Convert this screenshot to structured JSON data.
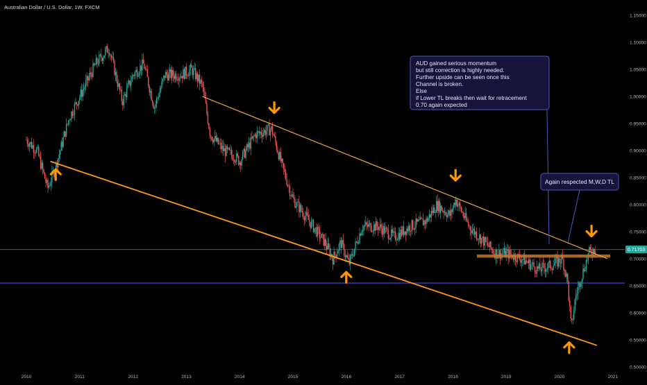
{
  "header": {
    "title": "Australian Dollar / U.S. Dollar, 1W, FXCM"
  },
  "price_badge": "0.71703",
  "annotations": {
    "main_lines": [
      "AUD gained serious momentum",
      "but still correction is highly needed.",
      "Further upside can be seen once this",
      "Channel is broken.",
      "Else",
      "if Lower TL breaks then wait for retracement",
      "0.70 again expected"
    ],
    "second": "Again respected M,W,D TL"
  },
  "colors": {
    "background": "#000000",
    "up_candle": "#26a69a",
    "down_candle": "#ef5350",
    "trendline_upper": "#f5a742",
    "trendline_lower": "#ff9a1f",
    "arrow": "#ff9800",
    "support_zone": "#c8762a",
    "horizontal_line": "#3b3ba8",
    "current_price_line": "#26a69a",
    "callout_fill": "#16143a",
    "callout_border": "#4a5bb8"
  },
  "chart_data": {
    "type": "candlestick",
    "title": "Australian Dollar / U.S. Dollar, 1W, FXCM",
    "x_ticks": [
      "2010",
      "2011",
      "2012",
      "2013",
      "2014",
      "2015",
      "2016",
      "2017",
      "2018",
      "2019",
      "2020",
      "2021"
    ],
    "y_ticks": [
      "1.15000",
      "1.10000",
      "1.05000",
      "1.00000",
      "0.95000",
      "0.90000",
      "0.85000",
      "0.80000",
      "0.75000",
      "0.70000",
      "0.65000",
      "0.60000",
      "0.55000",
      "0.50000"
    ],
    "ylim": [
      0.5,
      1.15
    ],
    "xlim": [
      2010.0,
      2021.2
    ],
    "close_path": [
      [
        2010.0,
        0.92
      ],
      [
        2010.2,
        0.9
      ],
      [
        2010.4,
        0.83
      ],
      [
        2010.55,
        0.87
      ],
      [
        2010.8,
        0.96
      ],
      [
        2011.0,
        1.0
      ],
      [
        2011.3,
        1.06
      ],
      [
        2011.55,
        1.09
      ],
      [
        2011.8,
        0.99
      ],
      [
        2012.0,
        1.04
      ],
      [
        2012.2,
        1.06
      ],
      [
        2012.4,
        0.98
      ],
      [
        2012.6,
        1.04
      ],
      [
        2012.9,
        1.04
      ],
      [
        2013.1,
        1.05
      ],
      [
        2013.3,
        1.02
      ],
      [
        2013.45,
        0.93
      ],
      [
        2013.7,
        0.9
      ],
      [
        2013.9,
        0.89
      ],
      [
        2014.0,
        0.88
      ],
      [
        2014.3,
        0.93
      ],
      [
        2014.6,
        0.94
      ],
      [
        2014.8,
        0.87
      ],
      [
        2015.0,
        0.81
      ],
      [
        2015.3,
        0.77
      ],
      [
        2015.6,
        0.73
      ],
      [
        2015.75,
        0.7
      ],
      [
        2015.9,
        0.73
      ],
      [
        2016.05,
        0.69
      ],
      [
        2016.3,
        0.76
      ],
      [
        2016.6,
        0.76
      ],
      [
        2016.9,
        0.74
      ],
      [
        2017.2,
        0.76
      ],
      [
        2017.5,
        0.77
      ],
      [
        2017.7,
        0.8
      ],
      [
        2017.95,
        0.78
      ],
      [
        2018.05,
        0.81
      ],
      [
        2018.3,
        0.76
      ],
      [
        2018.6,
        0.73
      ],
      [
        2018.8,
        0.71
      ],
      [
        2019.0,
        0.71
      ],
      [
        2019.3,
        0.7
      ],
      [
        2019.6,
        0.68
      ],
      [
        2019.9,
        0.69
      ],
      [
        2020.05,
        0.7
      ],
      [
        2020.15,
        0.66
      ],
      [
        2020.22,
        0.57
      ],
      [
        2020.3,
        0.63
      ],
      [
        2020.45,
        0.68
      ],
      [
        2020.55,
        0.71
      ],
      [
        2020.68,
        0.72
      ]
    ],
    "trendlines": [
      {
        "name": "upper",
        "points": [
          [
            2013.3,
            1.0
          ],
          [
            2020.9,
            0.7
          ]
        ]
      },
      {
        "name": "lower",
        "points": [
          [
            2010.45,
            0.88
          ],
          [
            2020.7,
            0.54
          ]
        ]
      }
    ],
    "horizontal_levels": [
      {
        "name": "blue-support",
        "y": 0.655
      },
      {
        "name": "current-price",
        "y": 0.71703
      }
    ],
    "zones": [
      {
        "name": "orange-resistance",
        "x": [
          2018.45,
          2020.95
        ],
        "y": 0.705
      }
    ],
    "arrows": [
      {
        "dir": "up",
        "x": 2010.55,
        "y": 0.855
      },
      {
        "dir": "down",
        "x": 2014.65,
        "y": 0.98
      },
      {
        "dir": "down",
        "x": 2018.05,
        "y": 0.855
      },
      {
        "dir": "up",
        "x": 2016.0,
        "y": 0.665
      },
      {
        "dir": "down",
        "x": 2020.6,
        "y": 0.752
      },
      {
        "dir": "up",
        "x": 2020.18,
        "y": 0.535
      }
    ]
  }
}
